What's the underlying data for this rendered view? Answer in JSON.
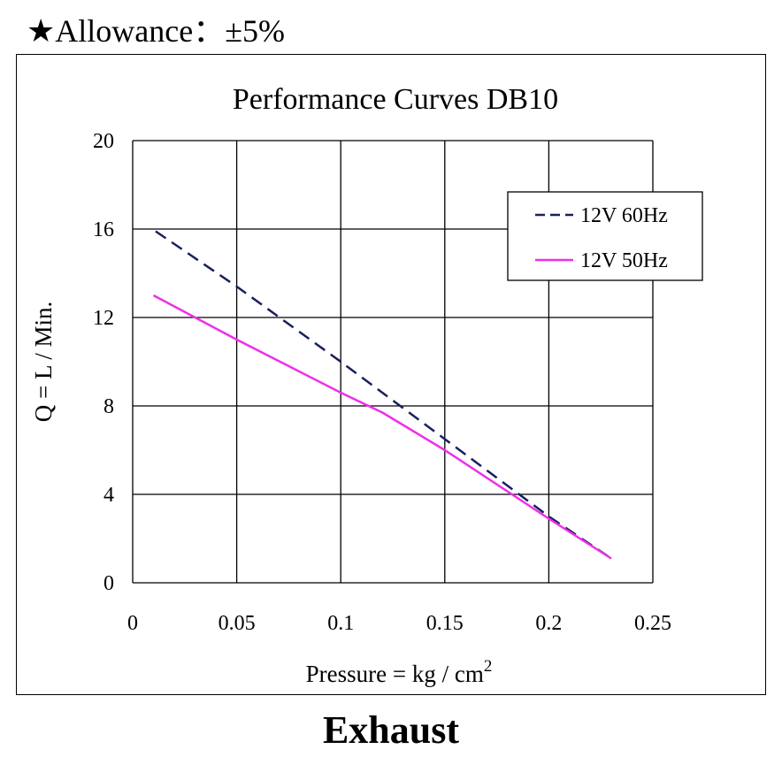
{
  "header": {
    "allowance": "★Allowance：±5%"
  },
  "footer": {
    "label": "Exhaust"
  },
  "colors": {
    "series_60hz": "#1a1f5e",
    "series_50hz": "#ee2fe8"
  },
  "chart_data": {
    "type": "line",
    "title": "Performance  Curves  DB10",
    "xlabel": "Pressure = kg / cm",
    "xlabel_superscript": "2",
    "ylabel": "Q = L / Min.",
    "xlim": [
      0,
      0.25
    ],
    "ylim": [
      0,
      20
    ],
    "xticks": [
      "0",
      "0.05",
      "0.1",
      "0.15",
      "0.2",
      "0.25"
    ],
    "yticks": [
      "0",
      "4",
      "8",
      "12",
      "16",
      "20"
    ],
    "grid": true,
    "legend_position": "top-right",
    "series": [
      {
        "name": "12V 60Hz",
        "style": "dashed",
        "x": [
          0.011,
          0.05,
          0.1,
          0.15,
          0.2,
          0.23
        ],
        "y": [
          15.9,
          13.4,
          10.0,
          6.5,
          3.0,
          1.1
        ]
      },
      {
        "name": "12V 50Hz",
        "style": "solid",
        "x": [
          0.01,
          0.05,
          0.1,
          0.12,
          0.15,
          0.2,
          0.23
        ],
        "y": [
          13.0,
          11.0,
          8.6,
          7.7,
          6.0,
          2.9,
          1.1
        ]
      }
    ]
  }
}
